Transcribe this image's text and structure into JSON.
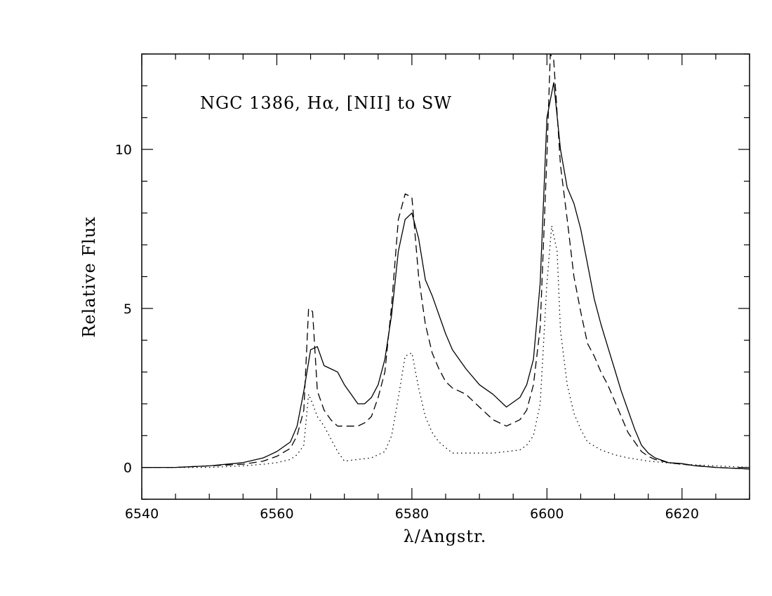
{
  "chart_data": {
    "type": "line",
    "title": "NGC 1386, Hα, [NII] to SW",
    "xlabel": "λ/Angstr.",
    "ylabel": "Relative Flux",
    "xlim": [
      6540,
      6630
    ],
    "ylim": [
      -1,
      13
    ],
    "x_ticks": [
      6540,
      6560,
      6580,
      6600,
      6620
    ],
    "y_ticks": [
      0,
      5,
      10
    ],
    "grid": false,
    "legend": "none",
    "series": [
      {
        "style": "solid",
        "x": [
          6540,
          6545,
          6550,
          6555,
          6558,
          6560,
          6562,
          6563,
          6564,
          6565,
          6566,
          6567,
          6568,
          6569,
          6570,
          6571,
          6572,
          6573,
          6574,
          6575,
          6576,
          6577,
          6578,
          6579,
          6580,
          6581,
          6582,
          6583,
          6584,
          6585,
          6586,
          6588,
          6590,
          6592,
          6594,
          6596,
          6597,
          6598,
          6599,
          6600,
          6601,
          6602,
          6603,
          6604,
          6605,
          6606,
          6607,
          6608,
          6609,
          6610,
          6611,
          6612,
          6613,
          6614,
          6615,
          6616,
          6618,
          6620,
          6622,
          6625,
          6630
        ],
        "y": [
          0.0,
          0.0,
          0.05,
          0.15,
          0.3,
          0.5,
          0.8,
          1.3,
          2.4,
          3.7,
          3.8,
          3.2,
          3.1,
          3.0,
          2.6,
          2.3,
          2.0,
          2.0,
          2.2,
          2.6,
          3.4,
          4.8,
          6.8,
          7.8,
          8.0,
          7.2,
          5.9,
          5.4,
          4.8,
          4.2,
          3.7,
          3.1,
          2.6,
          2.3,
          1.9,
          2.2,
          2.6,
          3.4,
          5.8,
          11.0,
          12.1,
          10.0,
          8.8,
          8.3,
          7.5,
          6.4,
          5.3,
          4.5,
          3.8,
          3.1,
          2.4,
          1.8,
          1.2,
          0.7,
          0.45,
          0.3,
          0.15,
          0.12,
          0.05,
          0.0,
          -0.05
        ]
      },
      {
        "style": "dashed",
        "x": [
          6540,
          6545,
          6550,
          6555,
          6558,
          6560,
          6562,
          6563,
          6564,
          6564.7,
          6565.3,
          6566,
          6567,
          6568,
          6569,
          6570,
          6571,
          6572,
          6573,
          6574,
          6575,
          6576,
          6577,
          6578,
          6579,
          6580,
          6581,
          6582,
          6583,
          6584,
          6585,
          6586,
          6588,
          6590,
          6592,
          6594,
          6596,
          6597,
          6598,
          6599,
          6600,
          6600.5,
          6601,
          6602,
          6603,
          6604,
          6605,
          6606,
          6607,
          6608,
          6609,
          6610,
          6611,
          6612,
          6613,
          6614,
          6615,
          6616,
          6618,
          6620,
          6625,
          6630
        ],
        "y": [
          0.0,
          0.0,
          0.05,
          0.1,
          0.2,
          0.35,
          0.6,
          1.0,
          1.8,
          5.0,
          4.9,
          2.4,
          1.8,
          1.5,
          1.3,
          1.3,
          1.3,
          1.3,
          1.4,
          1.6,
          2.2,
          3.0,
          5.1,
          7.8,
          8.6,
          8.5,
          6.0,
          4.5,
          3.6,
          3.1,
          2.7,
          2.5,
          2.3,
          1.9,
          1.5,
          1.3,
          1.5,
          1.8,
          2.6,
          4.4,
          9.8,
          13.0,
          12.8,
          9.5,
          7.8,
          6.0,
          4.9,
          3.9,
          3.5,
          3.0,
          2.6,
          2.1,
          1.6,
          1.1,
          0.8,
          0.5,
          0.35,
          0.25,
          0.15,
          0.1,
          0.0,
          -0.05
        ]
      },
      {
        "style": "dotted",
        "x": [
          6540,
          6545,
          6550,
          6555,
          6558,
          6560,
          6562,
          6563,
          6564,
          6564.7,
          6565.3,
          6566,
          6567,
          6568,
          6569,
          6570,
          6572,
          6574,
          6576,
          6577,
          6578,
          6579,
          6580,
          6581,
          6582,
          6583,
          6584,
          6586,
          6588,
          6590,
          6592,
          6594,
          6596,
          6597,
          6598,
          6599,
          6600,
          6600.7,
          6601.5,
          6602,
          6603,
          6604,
          6605,
          6606,
          6608,
          6610,
          6612,
          6615,
          6620,
          6625,
          6630
        ],
        "y": [
          0.0,
          0.0,
          0.0,
          0.05,
          0.1,
          0.15,
          0.25,
          0.4,
          0.7,
          2.3,
          2.0,
          1.6,
          1.3,
          0.9,
          0.5,
          0.2,
          0.25,
          0.3,
          0.5,
          1.0,
          2.2,
          3.5,
          3.6,
          2.5,
          1.6,
          1.1,
          0.8,
          0.45,
          0.45,
          0.45,
          0.45,
          0.5,
          0.55,
          0.7,
          1.0,
          2.0,
          5.8,
          7.6,
          6.8,
          4.3,
          2.6,
          1.7,
          1.2,
          0.8,
          0.55,
          0.4,
          0.3,
          0.2,
          0.1,
          0.05,
          0.0
        ]
      }
    ]
  }
}
